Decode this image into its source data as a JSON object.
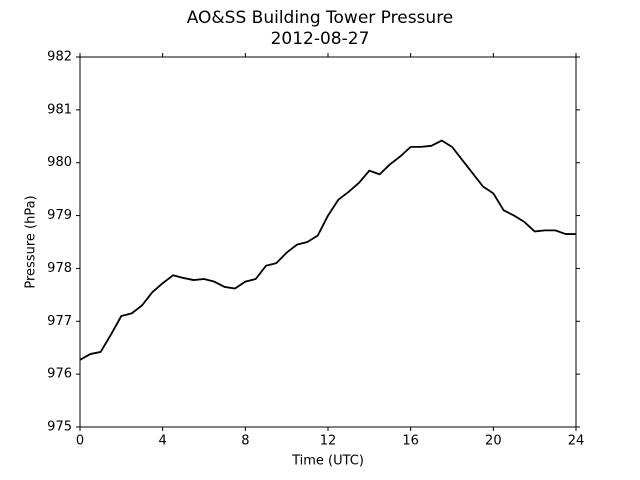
{
  "chart_data": {
    "type": "line",
    "title": "AO&SS Building Tower Pressure",
    "subtitle": "2012-08-27",
    "x_label": "Time (UTC)",
    "y_label": "Pressure (hPa)",
    "x": [
      0,
      0.5,
      1,
      1.5,
      2,
      2.5,
      3,
      3.5,
      4,
      4.5,
      5,
      5.5,
      6,
      6.5,
      7,
      7.5,
      8,
      8.5,
      9,
      9.5,
      10,
      10.5,
      11,
      11.5,
      12,
      12.5,
      13,
      13.5,
      14,
      14.5,
      15,
      15.5,
      16,
      16.5,
      17,
      17.5,
      18,
      18.5,
      19,
      19.5,
      20,
      20.5,
      21,
      21.5,
      22,
      22.5,
      23,
      23.5,
      24
    ],
    "values": [
      976.27,
      976.38,
      976.42,
      976.75,
      977.1,
      977.15,
      977.3,
      977.55,
      977.72,
      977.87,
      977.82,
      977.78,
      977.8,
      977.75,
      977.65,
      977.62,
      977.75,
      977.8,
      978.05,
      978.1,
      978.3,
      978.45,
      978.5,
      978.62,
      979.0,
      979.3,
      979.45,
      979.62,
      979.85,
      979.78,
      979.97,
      980.12,
      980.3,
      980.3,
      980.32,
      980.42,
      980.3,
      980.05,
      979.8,
      979.55,
      979.42,
      979.1,
      979.0,
      978.88,
      978.7,
      978.72,
      978.72,
      978.65,
      978.65
    ],
    "color": "#000000",
    "xlim": [
      0,
      24
    ],
    "xticks": [
      0,
      4,
      8,
      12,
      16,
      20,
      24
    ],
    "ylim": [
      975,
      982
    ],
    "yticks": [
      975,
      976,
      977,
      978,
      979,
      980,
      981,
      982
    ],
    "grid": false
  }
}
